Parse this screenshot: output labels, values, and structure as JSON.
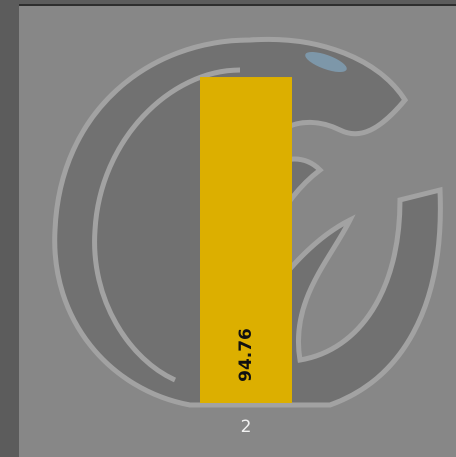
{
  "chart_data": {
    "type": "bar",
    "categories": [
      "2"
    ],
    "values": [
      94.76
    ],
    "color": "#dcaf00",
    "ylim": [
      0,
      100
    ]
  }
}
